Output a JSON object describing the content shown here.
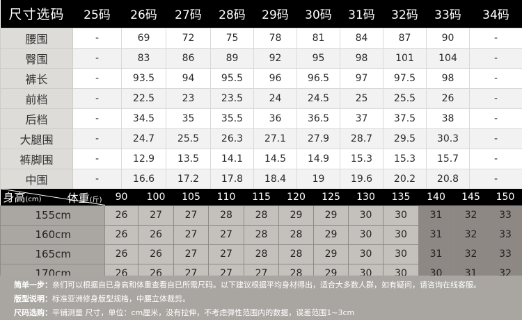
{
  "top_table": {
    "corner_label": "尺寸选码",
    "sizes": [
      "25码",
      "26码",
      "27码",
      "28码",
      "29码",
      "30码",
      "31码",
      "32码",
      "33码",
      "34码"
    ],
    "rows": [
      {
        "label": "腰围",
        "values": [
          "-",
          "69",
          "72",
          "75",
          "78",
          "81",
          "84",
          "87",
          "90",
          "-"
        ]
      },
      {
        "label": "臀围",
        "values": [
          "-",
          "83",
          "86",
          "89",
          "92",
          "95",
          "98",
          "101",
          "104",
          "-"
        ]
      },
      {
        "label": "裤长",
        "values": [
          "-",
          "93.5",
          "94",
          "95.5",
          "96",
          "96.5",
          "97",
          "97.5",
          "98",
          "-"
        ]
      },
      {
        "label": "前档",
        "values": [
          "-",
          "22.5",
          "23",
          "23.5",
          "24",
          "24.5",
          "25",
          "25.5",
          "26",
          "-"
        ]
      },
      {
        "label": "后档",
        "values": [
          "-",
          "34.5",
          "35",
          "35.5",
          "36",
          "36.5",
          "37",
          "37.5",
          "38",
          "-"
        ]
      },
      {
        "label": "大腿围",
        "values": [
          "-",
          "24.7",
          "25.5",
          "26.3",
          "27.1",
          "27.9",
          "28.7",
          "29.5",
          "30.3",
          "-"
        ]
      },
      {
        "label": "裤脚围",
        "values": [
          "-",
          "12.9",
          "13.5",
          "14.1",
          "14.5",
          "14.9",
          "15.3",
          "15.3",
          "15.7",
          "-"
        ]
      },
      {
        "label": "中围",
        "values": [
          "-",
          "16.6",
          "17.2",
          "17.8",
          "18.4",
          "19",
          "19.6",
          "20.2",
          "20.8",
          "-"
        ]
      }
    ]
  },
  "height_table": {
    "corner_height": "身高",
    "corner_height_unit": "(cm)",
    "corner_weight": "体重",
    "corner_weight_unit": "(斤)",
    "weights": [
      "90",
      "100",
      "105",
      "110",
      "115",
      "120",
      "125",
      "130",
      "135",
      "140",
      "145",
      "150"
    ],
    "rows": [
      {
        "height": "155cm",
        "values": [
          "26",
          "27",
          "27",
          "28",
          "28",
          "29",
          "29",
          "30",
          "30",
          "31",
          "32",
          "33"
        ]
      },
      {
        "height": "160cm",
        "values": [
          "26",
          "26",
          "27",
          "27",
          "28",
          "28",
          "29",
          "30",
          "30",
          "31",
          "32",
          "33"
        ]
      },
      {
        "height": "165cm",
        "values": [
          "26",
          "26",
          "27",
          "27",
          "28",
          "28",
          "29",
          "30",
          "30",
          "31",
          "32",
          "33"
        ]
      },
      {
        "height": "170cm",
        "values": [
          "26",
          "26",
          "27",
          "27",
          "27",
          "28",
          "29",
          "30",
          "30",
          "30",
          "31",
          "32"
        ]
      }
    ]
  },
  "notes": [
    {
      "title": "简单一步：",
      "text": "亲们可以根据自已身高和体重查看自已所需尺码。以下建议根据平均身材得出，适合大多数人群，如有疑问，请咨询在线客服。"
    },
    {
      "title": "版型说明：",
      "text": "标准亚洲修身版型规格，中腰立体裁剪。"
    },
    {
      "title": "尺码选购：",
      "text": "平铺测量 尺寸，单位：cm厘米，没有拉伸，不考虑弹性范围内的数据，误差范围1~3cm"
    }
  ]
}
